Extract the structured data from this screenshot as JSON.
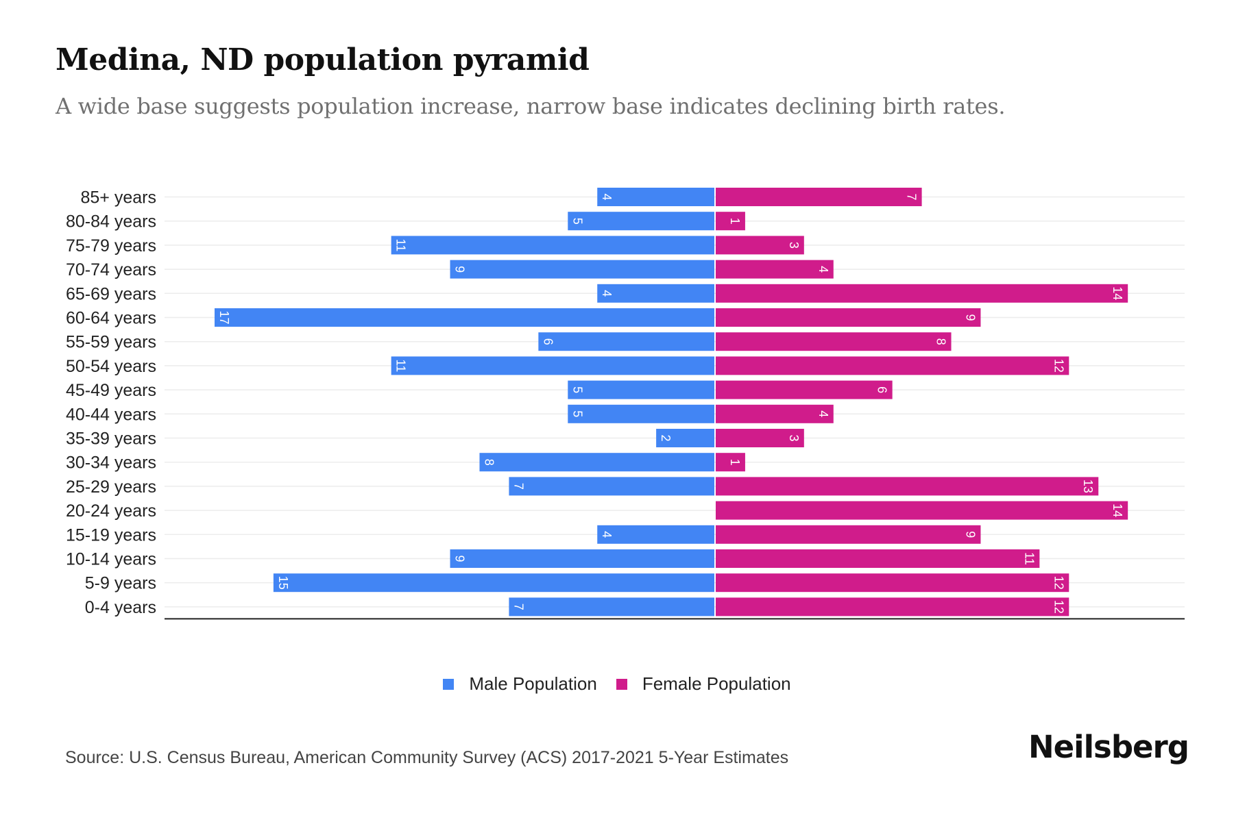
{
  "header": {
    "title": "Medina, ND population pyramid",
    "subtitle": "A wide base suggests population increase, narrow base indicates declining birth rates."
  },
  "chart_data": {
    "type": "bar",
    "orientation": "horizontal-diverging",
    "title": "Medina, ND population pyramid",
    "subtitle": "A wide base suggests population increase, narrow base indicates declining birth rates.",
    "categories": [
      "85+ years",
      "80-84 years",
      "75-79 years",
      "70-74 years",
      "65-69 years",
      "60-64 years",
      "55-59 years",
      "50-54 years",
      "45-49 years",
      "40-44 years",
      "35-39 years",
      "30-34 years",
      "25-29 years",
      "20-24 years",
      "15-19 years",
      "10-14 years",
      "5-9 years",
      "0-4 years"
    ],
    "series": [
      {
        "name": "Male Population",
        "color": "#4285F4",
        "side": "left",
        "values": [
          4,
          5,
          11,
          9,
          4,
          17,
          6,
          11,
          5,
          5,
          2,
          8,
          7,
          0,
          4,
          9,
          15,
          7
        ]
      },
      {
        "name": "Female Population",
        "color": "#D01C8B",
        "side": "right",
        "values": [
          7,
          1,
          3,
          4,
          14,
          9,
          8,
          12,
          6,
          4,
          3,
          1,
          13,
          14,
          9,
          11,
          12,
          12
        ]
      }
    ],
    "xlim": [
      -18.7,
      16
    ],
    "grid": true,
    "data_labels": "rotated-inside-bar-end",
    "legend": "bottom-center",
    "xlabel": "",
    "ylabel": ""
  },
  "legend": {
    "items": [
      {
        "label": "Male Population",
        "color": "#4285F4"
      },
      {
        "label": "Female Population",
        "color": "#D01C8B"
      }
    ]
  },
  "footer": {
    "source": "Source: U.S. Census Bureau, American Community Survey (ACS) 2017-2021 5-Year Estimates",
    "brand": "Neilsberg"
  }
}
